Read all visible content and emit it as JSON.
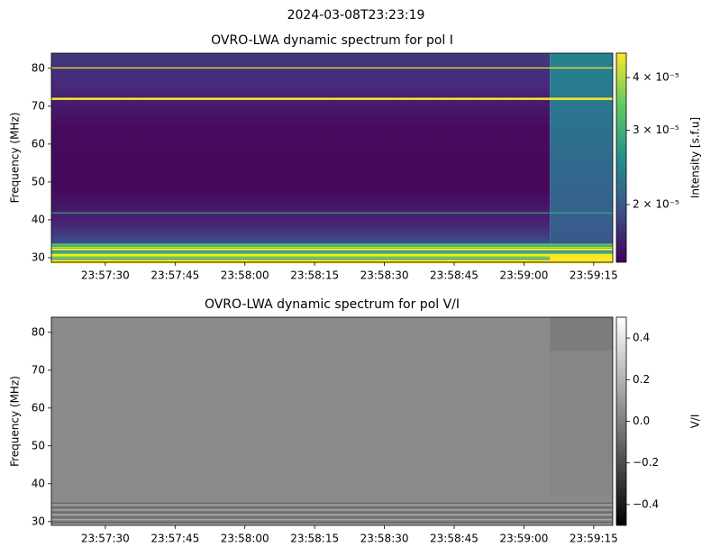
{
  "title": "2024-03-08T23:23:19",
  "chart_data": [
    {
      "type": "heatmap",
      "title": "OVRO-LWA dynamic spectrum for pol I",
      "ylabel": "Frequency (MHz)",
      "xlim": [
        86238.4,
        86359.1
      ],
      "xticks": [
        {
          "value": 86250,
          "label": "23:57:30"
        },
        {
          "value": 86265,
          "label": "23:57:45"
        },
        {
          "value": 86280,
          "label": "23:58:00"
        },
        {
          "value": 86295,
          "label": "23:58:15"
        },
        {
          "value": 86310,
          "label": "23:58:30"
        },
        {
          "value": 86325,
          "label": "23:58:45"
        },
        {
          "value": 86340,
          "label": "23:59:00"
        },
        {
          "value": 86355,
          "label": "23:59:15"
        }
      ],
      "ylim": [
        28.8,
        84.0
      ],
      "yticks": [
        30,
        40,
        50,
        60,
        70,
        80
      ],
      "colormap": "viridis",
      "colorbar": {
        "label": "Intensity [s.f.u]",
        "scale": "log",
        "lim": [
          1.46e-05,
          4.57e-05
        ],
        "ticks": [
          {
            "value": 2e-05,
            "label": "2 × 10⁻⁵"
          },
          {
            "value": 3e-05,
            "label": "3 × 10⁻⁵"
          },
          {
            "value": 4e-05,
            "label": "4 × 10⁻⁵"
          }
        ]
      }
    },
    {
      "type": "heatmap",
      "title": "OVRO-LWA dynamic spectrum for pol V/I",
      "ylabel": "Frequency (MHz)",
      "xlim": [
        86238.4,
        86359.1
      ],
      "xticks": [
        {
          "value": 86250,
          "label": "23:57:30"
        },
        {
          "value": 86265,
          "label": "23:57:45"
        },
        {
          "value": 86280,
          "label": "23:58:00"
        },
        {
          "value": 86295,
          "label": "23:58:15"
        },
        {
          "value": 86310,
          "label": "23:58:30"
        },
        {
          "value": 86325,
          "label": "23:58:45"
        },
        {
          "value": 86340,
          "label": "23:59:00"
        },
        {
          "value": 86355,
          "label": "23:59:15"
        }
      ],
      "ylim": [
        29.0,
        84.0
      ],
      "yticks": [
        30,
        40,
        50,
        60,
        70,
        80
      ],
      "colormap": "gray",
      "colorbar": {
        "label": "V/I",
        "scale": "linear",
        "lim": [
          -0.5,
          0.5
        ],
        "ticks": [
          {
            "value": -0.4,
            "label": "−0.4"
          },
          {
            "value": -0.2,
            "label": "−0.2"
          },
          {
            "value": 0.0,
            "label": "0.0"
          },
          0.2,
          0.4
        ]
      }
    }
  ]
}
